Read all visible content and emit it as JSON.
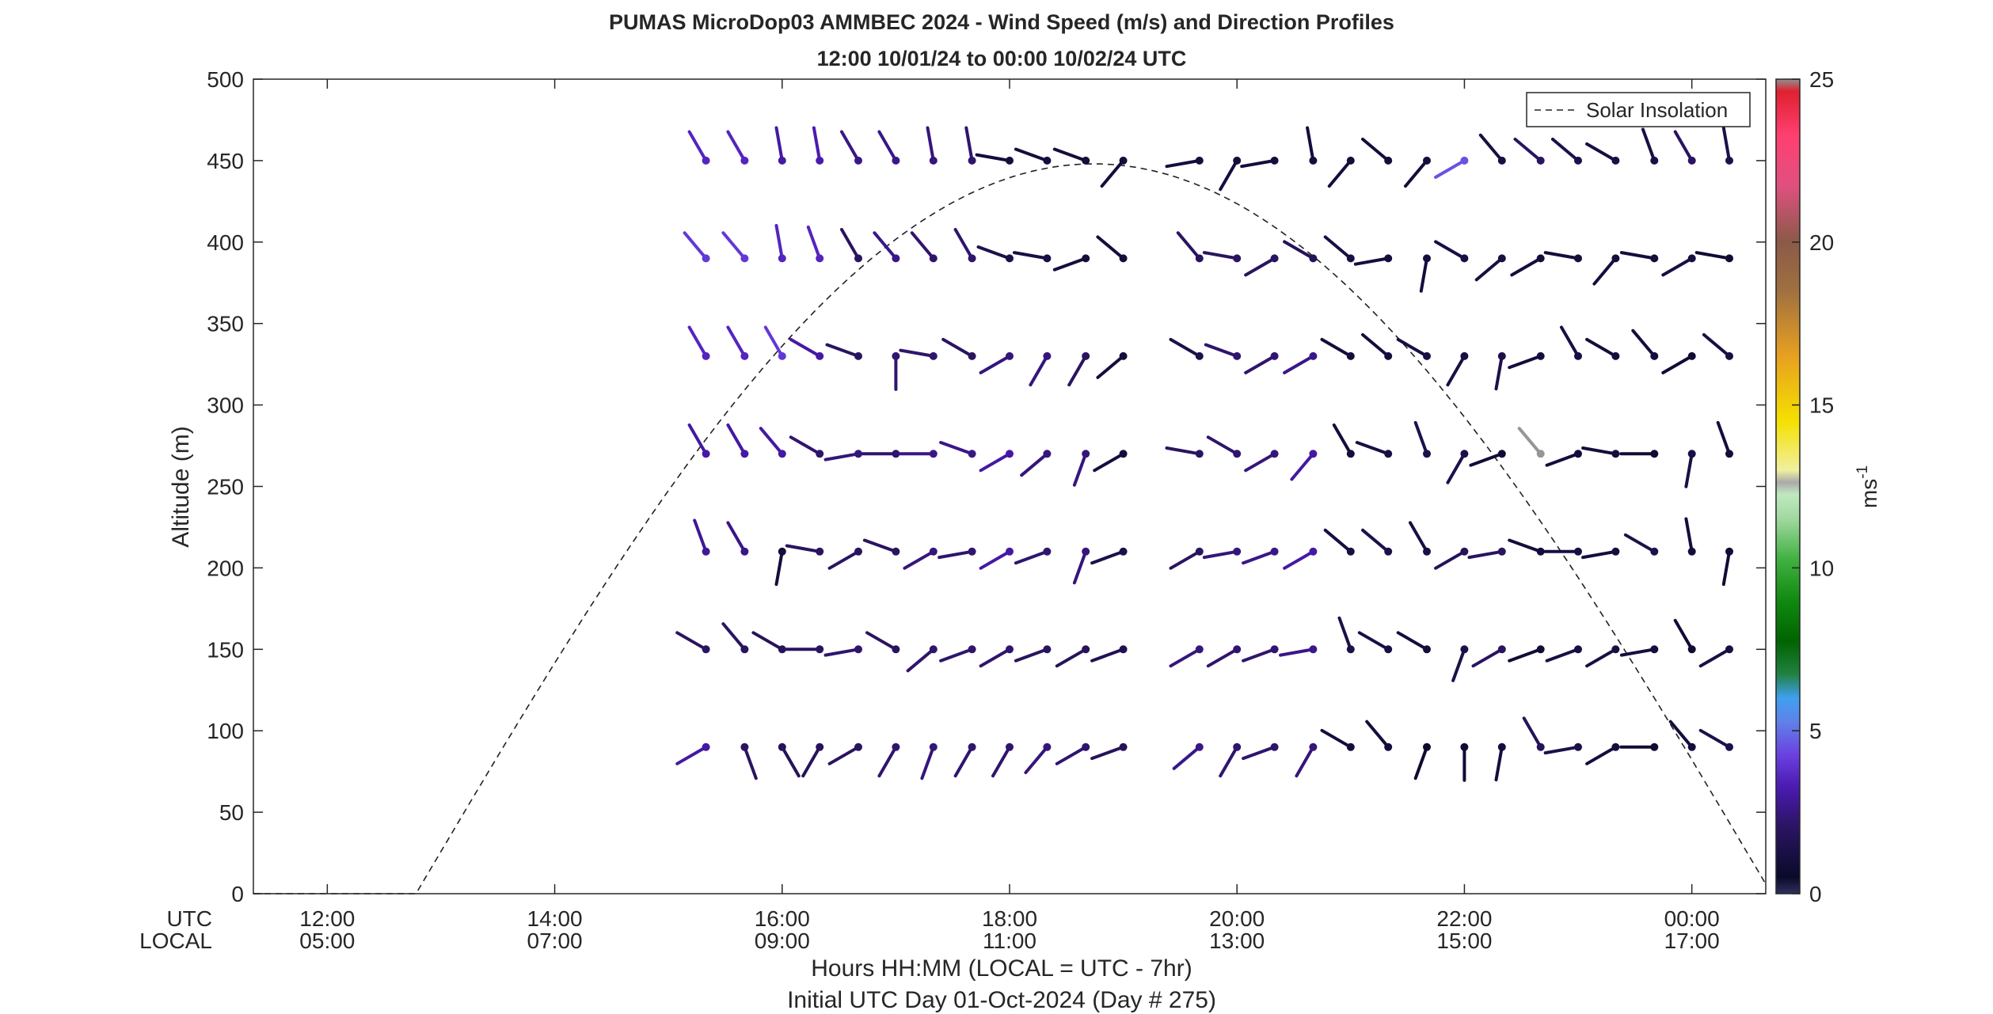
{
  "chart_data": {
    "type": "wind_barb_profile",
    "title_line1": "PUMAS MicroDop03 AMMBEC 2024 - Wind Speed (m/s) and Direction Profiles",
    "title_line2": "12:00 10/01/24 to 00:00 10/02/24  UTC",
    "xlabel": "Hours HH:MM  (LOCAL = UTC - 7hr)",
    "xlabel2": "Initial UTC Day 01-Oct-2024 (Day # 275)",
    "ylabel": "Altitude (m)",
    "utc_row_label": "UTC",
    "local_row_label": "LOCAL",
    "xlim_hours": [
      11.35,
      24.65
    ],
    "ylim": [
      0,
      500
    ],
    "y_ticks": [
      "0",
      "50",
      "100",
      "150",
      "200",
      "250",
      "300",
      "350",
      "400",
      "450",
      "500"
    ],
    "x_ticks": [
      {
        "hour": 12,
        "utc": "12:00",
        "local": "05:00"
      },
      {
        "hour": 14,
        "utc": "14:00",
        "local": "07:00"
      },
      {
        "hour": 16,
        "utc": "16:00",
        "local": "09:00"
      },
      {
        "hour": 18,
        "utc": "18:00",
        "local": "11:00"
      },
      {
        "hour": 20,
        "utc": "20:00",
        "local": "13:00"
      },
      {
        "hour": 22,
        "utc": "22:00",
        "local": "15:00"
      },
      {
        "hour": 24,
        "utc": "00:00",
        "local": "17:00"
      }
    ],
    "legend": {
      "label": "Solar Insolation",
      "position": "top-right"
    },
    "solar_insolation": {
      "rise_hour": 12.78,
      "set_hour": 24.7,
      "peak_altitude": 448
    },
    "colorbar": {
      "label": "ms",
      "exponent": "-1",
      "min": 0,
      "max": 25,
      "ticks": [
        "0",
        "5",
        "10",
        "15",
        "20",
        "25"
      ]
    },
    "profile_altitudes": [
      90,
      150,
      210,
      270,
      330,
      390,
      450
    ],
    "profile_hours": [
      15.33,
      15.67,
      16.0,
      16.33,
      16.67,
      17.0,
      17.33,
      17.67,
      18.0,
      18.33,
      18.67,
      19.0,
      19.67,
      20.0,
      20.33,
      20.67,
      21.0,
      21.33,
      21.67,
      22.0,
      22.33,
      22.67,
      23.0,
      23.33,
      23.67,
      24.0,
      24.33
    ],
    "barb_directions_deg": [
      [
        240,
        160,
        150,
        210,
        240,
        210,
        200,
        210,
        210,
        220,
        240,
        250,
        230,
        210,
        250,
        210,
        300,
        320,
        200,
        180,
        190,
        330,
        260,
        240,
        270,
        320,
        300
      ],
      [
        300,
        320,
        300,
        270,
        260,
        300,
        230,
        250,
        240,
        250,
        240,
        250,
        240,
        240,
        250,
        260,
        340,
        300,
        300,
        200,
        240,
        250,
        250,
        240,
        260,
        330,
        240
      ],
      [
        340,
        330,
        190,
        280,
        240,
        290,
        240,
        260,
        240,
        250,
        200,
        250,
        240,
        260,
        250,
        240,
        310,
        310,
        330,
        240,
        260,
        290,
        270,
        260,
        300,
        350,
        190
      ],
      [
        330,
        330,
        320,
        300,
        260,
        270,
        270,
        290,
        240,
        230,
        200,
        240,
        280,
        300,
        240,
        220,
        330,
        290,
        340,
        210,
        250,
        320,
        250,
        280,
        270,
        190,
        340
      ],
      [
        330,
        330,
        330,
        300,
        290,
        180,
        280,
        300,
        240,
        210,
        210,
        230,
        300,
        290,
        240,
        240,
        300,
        310,
        300,
        210,
        190,
        250,
        330,
        300,
        320,
        240,
        310
      ],
      [
        320,
        320,
        350,
        340,
        330,
        320,
        320,
        330,
        290,
        280,
        250,
        310,
        320,
        280,
        240,
        300,
        310,
        260,
        190,
        300,
        230,
        240,
        280,
        220,
        280,
        240,
        280
      ],
      [
        330,
        330,
        350,
        350,
        330,
        330,
        350,
        350,
        280,
        290,
        290,
        220,
        260,
        210,
        260,
        350,
        220,
        310,
        220,
        240,
        320,
        310,
        310,
        300,
        340,
        330,
        350
      ]
    ],
    "barb_speeds_ms": [
      [
        3.0,
        2.0,
        1.8,
        1.8,
        2.0,
        2.2,
        2.4,
        2.2,
        2.2,
        2.4,
        2.2,
        1.8,
        2.6,
        2.2,
        2.2,
        2.4,
        1.0,
        1.0,
        0.6,
        0.8,
        1.0,
        1.8,
        1.4,
        1.0,
        0.8,
        1.0,
        1.4
      ],
      [
        2.0,
        2.0,
        1.8,
        2.0,
        2.2,
        2.0,
        2.2,
        2.2,
        2.2,
        2.0,
        1.8,
        1.6,
        2.4,
        2.2,
        2.2,
        2.6,
        1.4,
        1.2,
        1.0,
        1.4,
        2.0,
        0.8,
        1.2,
        1.2,
        1.0,
        0.8,
        1.2
      ],
      [
        2.8,
        2.6,
        1.0,
        2.0,
        2.0,
        2.0,
        2.4,
        2.2,
        3.0,
        2.2,
        2.4,
        1.4,
        2.0,
        2.4,
        2.6,
        3.0,
        1.2,
        1.4,
        1.2,
        1.8,
        2.0,
        1.0,
        1.2,
        1.0,
        1.4,
        1.0,
        0.8
      ],
      [
        3.0,
        3.0,
        3.0,
        2.2,
        2.4,
        2.2,
        2.6,
        2.6,
        3.0,
        2.4,
        2.4,
        1.0,
        2.0,
        2.2,
        2.4,
        3.0,
        1.0,
        1.2,
        1.4,
        1.4,
        0.8,
        11.5,
        1.0,
        1.0,
        0.8,
        1.2,
        1.0
      ],
      [
        3.5,
        3.5,
        4.0,
        3.0,
        2.0,
        2.2,
        2.2,
        2.0,
        2.4,
        2.4,
        2.0,
        1.0,
        1.4,
        2.2,
        2.2,
        2.6,
        1.0,
        1.0,
        1.2,
        1.2,
        1.4,
        1.0,
        1.2,
        1.0,
        1.0,
        0.8,
        1.2
      ],
      [
        4.0,
        4.0,
        3.5,
        3.5,
        2.0,
        2.6,
        2.2,
        2.2,
        1.4,
        1.2,
        1.0,
        1.0,
        2.0,
        2.0,
        2.0,
        1.8,
        1.2,
        1.0,
        1.0,
        1.2,
        1.2,
        1.0,
        1.0,
        1.0,
        1.0,
        1.2,
        0.8
      ],
      [
        3.5,
        3.5,
        3.0,
        3.2,
        2.6,
        2.6,
        2.4,
        2.2,
        1.0,
        1.0,
        1.0,
        1.0,
        1.0,
        1.0,
        1.0,
        1.0,
        1.0,
        1.0,
        1.0,
        4.5,
        1.2,
        2.0,
        1.4,
        1.2,
        1.2,
        2.0,
        1.4
      ]
    ]
  }
}
